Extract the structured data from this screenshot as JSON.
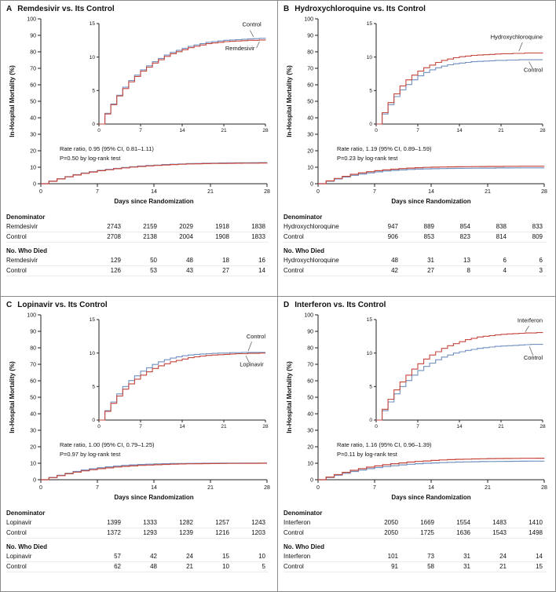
{
  "axes": {
    "x_label": "Days since Randomization",
    "y_label": "In-Hospital Mortality (%)",
    "x_ticks": [
      0,
      7,
      14,
      21,
      28
    ],
    "main_y_ticks": [
      0,
      10,
      20,
      30,
      40,
      50,
      60,
      70,
      80,
      90,
      100
    ],
    "inset_y_ticks": [
      0,
      5,
      10,
      15
    ],
    "x_range": [
      0,
      28
    ],
    "main_y_range": [
      0,
      100
    ],
    "inset_y_range": [
      0,
      15
    ]
  },
  "colors": {
    "treatment": "#c5463b",
    "control": "#6f90c1",
    "axis": "#222222"
  },
  "chart_data": [
    {
      "type": "line",
      "subtype": "kaplan-meier-step",
      "panel_letter": "A",
      "title": "Remdesivir vs. Its Control",
      "annotation": {
        "line1": "Rate ratio, 0.95 (95% CI, 0.81–1.11)",
        "line2": "P=0.50 by log-rank test"
      },
      "series": [
        {
          "name": "Remdesivir",
          "role": "treatment",
          "values_pct_by_day": [
            0,
            1.5,
            2.9,
            4.2,
            5.3,
            6.3,
            7.1,
            7.9,
            8.5,
            9.1,
            9.6,
            10.1,
            10.5,
            10.8,
            11.1,
            11.4,
            11.6,
            11.8,
            12.0,
            12.1,
            12.2,
            12.3,
            12.35,
            12.4,
            12.45,
            12.5,
            12.5,
            12.55,
            12.6
          ]
        },
        {
          "name": "Control",
          "role": "control",
          "values_pct_by_day": [
            0,
            1.6,
            3.0,
            4.3,
            5.5,
            6.5,
            7.3,
            8.1,
            8.7,
            9.3,
            9.8,
            10.3,
            10.7,
            11.0,
            11.3,
            11.6,
            11.8,
            12.0,
            12.2,
            12.3,
            12.4,
            12.5,
            12.55,
            12.6,
            12.65,
            12.7,
            12.75,
            12.8,
            12.85
          ]
        }
      ],
      "inset_labels": [
        {
          "text": "Control",
          "x_day": 27.3,
          "y_pct": 14.6,
          "pointer": [
            25.4,
            14.0,
            26.0,
            13.0
          ]
        },
        {
          "text": "Remdesivir",
          "x_day": 26.2,
          "y_pct": 11.0,
          "pointer": [
            26.5,
            11.35,
            27.0,
            12.3
          ]
        }
      ],
      "table": {
        "denominator_header": "Denominator",
        "deaths_header": "No. Who Died",
        "denominator_rows": [
          {
            "label": "Remdesivir",
            "values": [
              2743,
              2159,
              2029,
              1918,
              1838
            ]
          },
          {
            "label": "Control",
            "values": [
              2708,
              2138,
              2004,
              1908,
              1833
            ]
          }
        ],
        "deaths_rows": [
          {
            "label": "Remdesivir",
            "values": [
              129,
              50,
              48,
              18,
              16
            ]
          },
          {
            "label": "Control",
            "values": [
              126,
              53,
              43,
              27,
              14
            ]
          }
        ]
      }
    },
    {
      "type": "line",
      "subtype": "kaplan-meier-step",
      "panel_letter": "B",
      "title": "Hydroxychloroquine vs. Its Control",
      "annotation": {
        "line1": "Rate ratio, 1.19 (95% CI, 0.89–1.59)",
        "line2": "P=0.23 by log-rank test"
      },
      "series": [
        {
          "name": "Hydroxychloroquine",
          "role": "treatment",
          "values_pct_by_day": [
            0,
            1.7,
            3.2,
            4.5,
            5.7,
            6.6,
            7.3,
            7.9,
            8.4,
            8.8,
            9.2,
            9.5,
            9.7,
            9.9,
            10.05,
            10.15,
            10.25,
            10.3,
            10.35,
            10.4,
            10.45,
            10.5,
            10.5,
            10.55,
            10.55,
            10.6,
            10.6,
            10.6,
            10.65
          ]
        },
        {
          "name": "Control",
          "role": "control",
          "values_pct_by_day": [
            0,
            1.5,
            2.9,
            4.1,
            5.1,
            5.9,
            6.6,
            7.2,
            7.7,
            8.1,
            8.4,
            8.65,
            8.85,
            9.0,
            9.1,
            9.2,
            9.3,
            9.35,
            9.4,
            9.45,
            9.5,
            9.5,
            9.55,
            9.55,
            9.6,
            9.6,
            9.6,
            9.6,
            9.6
          ]
        }
      ],
      "inset_labels": [
        {
          "text": "Hydroxychloroquine",
          "x_day": 28,
          "y_pct": 12.7,
          "pointer": [
            24.6,
            12.2,
            24.0,
            10.9
          ]
        },
        {
          "text": "Control",
          "x_day": 28,
          "y_pct": 7.8,
          "pointer": [
            26.3,
            8.3,
            25.7,
            9.3
          ]
        }
      ],
      "table": {
        "denominator_header": "Denominator",
        "deaths_header": "No. Who Died",
        "denominator_rows": [
          {
            "label": "Hydroxychloroquine",
            "values": [
              947,
              889,
              854,
              838,
              833
            ]
          },
          {
            "label": "Control",
            "values": [
              906,
              853,
              823,
              814,
              809
            ]
          }
        ],
        "deaths_rows": [
          {
            "label": "Hydroxychloroquine",
            "values": [
              48,
              31,
              13,
              6,
              6
            ]
          },
          {
            "label": "Control",
            "values": [
              42,
              27,
              8,
              4,
              3
            ]
          }
        ]
      }
    },
    {
      "type": "line",
      "subtype": "kaplan-meier-step",
      "panel_letter": "C",
      "title": "Lopinavir vs. Its Control",
      "annotation": {
        "line1": "Rate ratio, 1.00 (95% CI, 0.79–1.25)",
        "line2": "P=0.97 by log-rank test"
      },
      "series": [
        {
          "name": "Lopinavir",
          "role": "treatment",
          "values_pct_by_day": [
            0,
            1.3,
            2.5,
            3.6,
            4.6,
            5.4,
            6.1,
            6.7,
            7.2,
            7.7,
            8.1,
            8.4,
            8.7,
            8.9,
            9.1,
            9.3,
            9.45,
            9.55,
            9.65,
            9.7,
            9.75,
            9.8,
            9.85,
            9.9,
            9.9,
            9.95,
            9.95,
            10.0,
            10.0
          ]
        },
        {
          "name": "Control",
          "role": "control",
          "values_pct_by_day": [
            0,
            1.4,
            2.7,
            3.9,
            5.0,
            5.9,
            6.6,
            7.3,
            7.8,
            8.3,
            8.7,
            9.0,
            9.25,
            9.45,
            9.6,
            9.7,
            9.8,
            9.85,
            9.9,
            9.95,
            10.0,
            10.0,
            10.05,
            10.05,
            10.1,
            10.1,
            10.1,
            10.1,
            10.1
          ]
        }
      ],
      "inset_labels": [
        {
          "text": "Control",
          "x_day": 28,
          "y_pct": 12.2,
          "pointer": [
            25.7,
            11.7,
            25.1,
            10.3
          ]
        },
        {
          "text": "Lopinavir",
          "x_day": 27.7,
          "y_pct": 8.0,
          "pointer": [
            25.3,
            8.5,
            24.7,
            9.6
          ]
        }
      ],
      "table": {
        "denominator_header": "Denominator",
        "deaths_header": "No. Who Died",
        "denominator_rows": [
          {
            "label": "Lopinavir",
            "values": [
              1399,
              1333,
              1282,
              1257,
              1243
            ]
          },
          {
            "label": "Control",
            "values": [
              1372,
              1293,
              1239,
              1216,
              1203
            ]
          }
        ],
        "deaths_rows": [
          {
            "label": "Lopinavir",
            "values": [
              57,
              42,
              24,
              15,
              10
            ]
          },
          {
            "label": "Control",
            "values": [
              62,
              48,
              21,
              10,
              5
            ]
          }
        ]
      }
    },
    {
      "type": "line",
      "subtype": "kaplan-meier-step",
      "panel_letter": "D",
      "title": "Interferon vs. Its Control",
      "annotation": {
        "line1": "Rate ratio, 1.16 (95% CI, 0.96–1.39)",
        "line2": "P=0.11 by log-rank test"
      },
      "series": [
        {
          "name": "Interferon",
          "role": "treatment",
          "values_pct_by_day": [
            0,
            1.6,
            3.1,
            4.5,
            5.7,
            6.7,
            7.6,
            8.4,
            9.1,
            9.7,
            10.2,
            10.7,
            11.1,
            11.4,
            11.7,
            12.0,
            12.2,
            12.4,
            12.5,
            12.6,
            12.7,
            12.8,
            12.85,
            12.9,
            12.95,
            13.0,
            13.0,
            13.05,
            13.1
          ]
        },
        {
          "name": "Control",
          "role": "control",
          "values_pct_by_day": [
            0,
            1.4,
            2.7,
            3.9,
            5.0,
            5.9,
            6.7,
            7.4,
            8.0,
            8.5,
            9.0,
            9.4,
            9.7,
            10.0,
            10.2,
            10.4,
            10.55,
            10.7,
            10.8,
            10.9,
            11.0,
            11.05,
            11.1,
            11.15,
            11.2,
            11.25,
            11.3,
            11.3,
            11.35
          ]
        }
      ],
      "inset_labels": [
        {
          "text": "Interferon",
          "x_day": 28,
          "y_pct": 14.6,
          "pointer": [
            25.7,
            14.05,
            25.1,
            13.2
          ]
        },
        {
          "text": "Control",
          "x_day": 28,
          "y_pct": 9.0,
          "pointer": [
            26.4,
            9.6,
            25.8,
            10.95
          ]
        }
      ],
      "table": {
        "denominator_header": "Denominator",
        "deaths_header": "No. Who Died",
        "denominator_rows": [
          {
            "label": "Interferon",
            "values": [
              2050,
              1669,
              1554,
              1483,
              1410
            ]
          },
          {
            "label": "Control",
            "values": [
              2050,
              1725,
              1636,
              1543,
              1498
            ]
          }
        ],
        "deaths_rows": [
          {
            "label": "Interferon",
            "values": [
              101,
              73,
              31,
              24,
              14
            ]
          },
          {
            "label": "Control",
            "values": [
              91,
              58,
              31,
              21,
              15
            ]
          }
        ]
      }
    }
  ]
}
